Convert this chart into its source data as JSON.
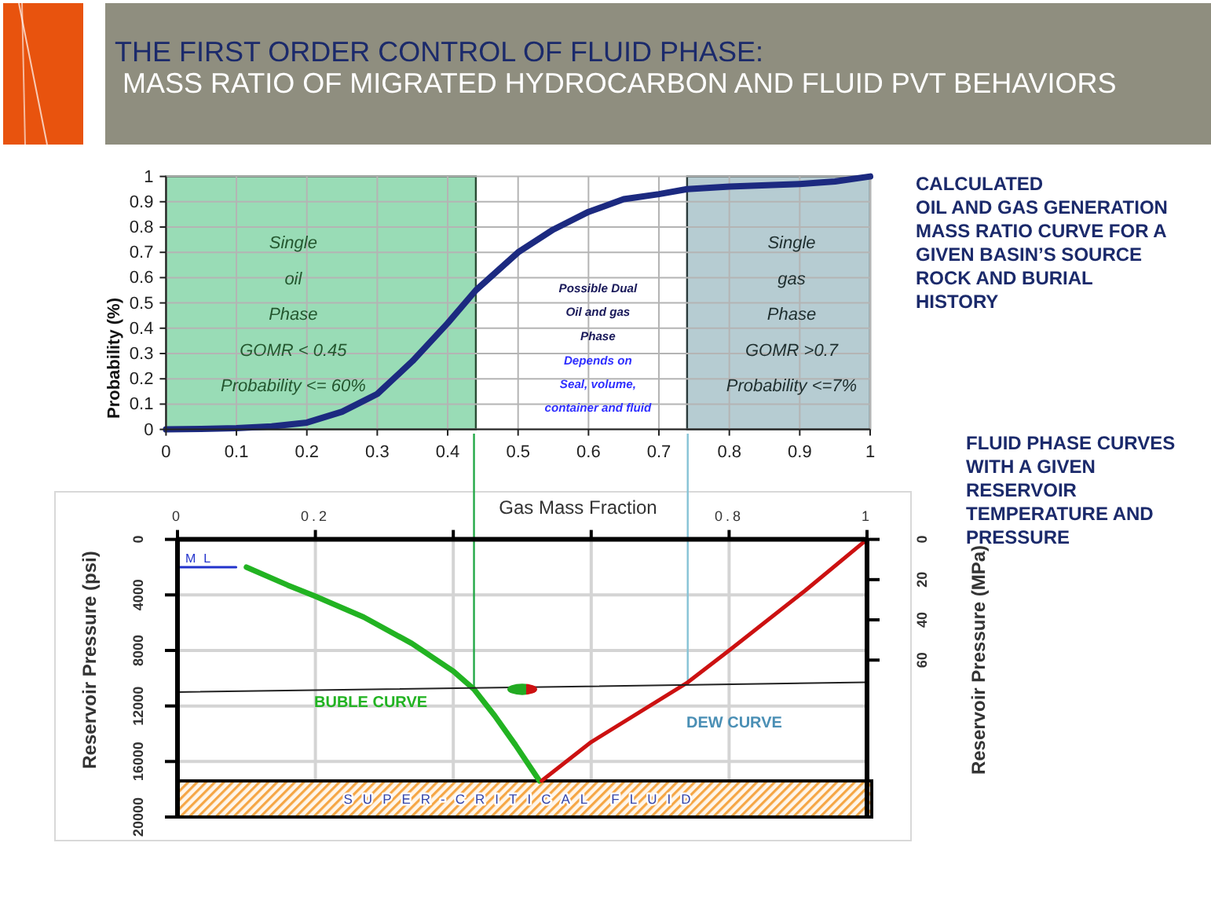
{
  "chart_data": [
    {
      "type": "line",
      "title": "THE FIRST ORDER CONTROL OF FLUID PHASE:",
      "subtitle": "MASS RATIO OF MIGRATED HYDROCARBON AND FLUID PVT BEHAVIORS",
      "ylabel": "Probability (%)",
      "x": [
        0,
        0.05,
        0.1,
        0.15,
        0.2,
        0.25,
        0.3,
        0.35,
        0.4,
        0.44,
        0.5,
        0.55,
        0.6,
        0.65,
        0.7,
        0.74,
        0.8,
        0.9,
        0.95,
        1
      ],
      "series": [
        {
          "color": "#1c2a80",
          "values": [
            0,
            0.002,
            0.005,
            0.012,
            0.027,
            0.07,
            0.14,
            0.27,
            0.42,
            0.55,
            0.7,
            0.79,
            0.86,
            0.91,
            0.93,
            0.95,
            0.96,
            0.97,
            0.98,
            1
          ]
        }
      ],
      "xlim": [
        0,
        1
      ],
      "xticks": [
        0,
        0.1,
        0.2,
        0.3,
        0.4,
        0.5,
        0.6,
        0.7,
        0.8,
        0.9,
        1
      ],
      "ylim": [
        0,
        1
      ],
      "yticks": [
        0,
        0.1,
        0.2,
        0.3,
        0.4,
        0.5,
        0.6,
        0.7,
        0.8,
        0.9,
        1
      ],
      "grid": true,
      "bands": [
        {
          "axis": "x",
          "from": 0,
          "to": 0.44,
          "label": "Single\noil\nPhase\nGOMR < 0.45\nProbability <= 60%",
          "color": "#99dcb6"
        },
        {
          "axis": "x",
          "from": 0.74,
          "to": 1,
          "label": "Single\ngas\nPhase\nGOMR >0.7\nProbability <=7%",
          "color": "#b6ccd2"
        }
      ],
      "annotations": [
        "Possible Dual\nOil and gas\nPhase",
        "Depends on\nSeal, volume,\ncontainer and fluid",
        "CALCULATED\nOIL AND GAS GENERATION\nMASS RATIO CURVE FOR A\nGIVEN BASIN’S SOURCE\nROCK AND BURIAL\nHISTORY"
      ]
    },
    {
      "type": "line",
      "xlabel": "Gas Mass Fraction",
      "ylabel": "Reservoir Pressure  (psi)",
      "y2label": "Reservoir Pressure  (MPa)",
      "xlim": [
        0,
        1
      ],
      "xticks": [
        0,
        0.2,
        {
          "value": 0.4,
          "label": null
        },
        {
          "value": 0.6,
          "label": null
        },
        0.8,
        1
      ],
      "ylim": [
        20000,
        0
      ],
      "yticks": [
        0,
        4000,
        8000,
        12000,
        16000,
        20000
      ],
      "y2lim": [
        138,
        0
      ],
      "y2ticks": [
        0,
        20,
        40,
        60
      ],
      "grid": true,
      "series": [
        {
          "name": "BUBLE CURVE",
          "color": "#22b322",
          "x": [
            0.1,
            0.16,
            0.2,
            0.27,
            0.34,
            0.4,
            0.43,
            0.46,
            0.49,
            0.525
          ],
          "values": [
            2000,
            3300,
            4100,
            5600,
            7500,
            9500,
            10800,
            12700,
            14800,
            17400
          ]
        },
        {
          "name": "DEW CURVE",
          "color": "#cc1111",
          "x": [
            0.528,
            0.6,
            0.74,
            0.8,
            0.91,
            1
          ],
          "values": [
            17400,
            14600,
            10300,
            8000,
            3700,
            0
          ]
        },
        {
          "color": "#222222",
          "x": [
            0,
            1
          ],
          "values": [
            11000,
            10300
          ]
        },
        {
          "color": "#2233cc",
          "x": [
            0,
            0.085
          ],
          "values": [
            2000,
            2000
          ]
        },
        {
          "type": "scatter",
          "color": "#22aa22",
          "marker": "circle",
          "x": [
            0.5
          ],
          "values": [
            10800
          ]
        }
      ],
      "ref_lines": [
        {
          "axis": "x",
          "value": 0.43,
          "color": "#23a847"
        },
        {
          "axis": "x",
          "value": 0.74,
          "color": "#86c3d6"
        }
      ],
      "bands": [
        {
          "axis": "y",
          "from": 17400,
          "to": 20000,
          "label": "SUPER-CRITICAL FLUID",
          "color": "#f5a645"
        }
      ],
      "annotations": [
        {
          "text": "ML",
          "x": 0,
          "y": 2000
        },
        "FLUID PHASE CURVES\nWITH A GIVEN\nRESERVOIR\nTEMPERATURE AND\nPRESSURE"
      ]
    }
  ]
}
